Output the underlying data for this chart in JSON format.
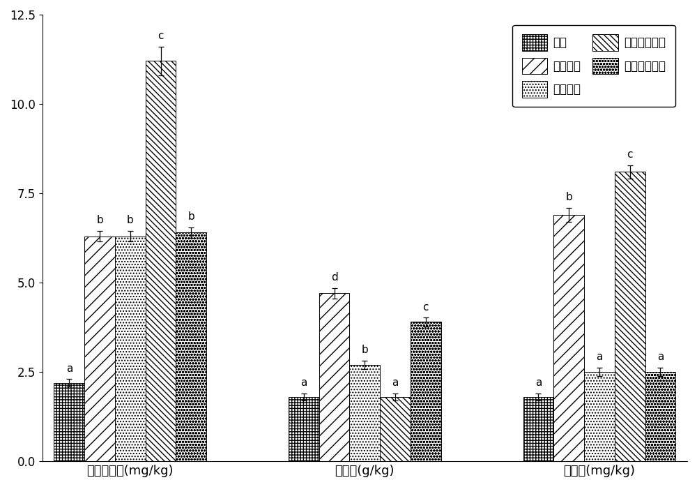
{
  "groups": [
    "微生物量氮(mg/kg)",
    "有机碳(g/kg)",
    "有效磷(mg/kg)"
  ],
  "series_labels": [
    "对照",
    "复合菌剂",
    "固氮菌剂",
    "光合固碳菌剂",
    "解磷解钾菌剂"
  ],
  "values": [
    [
      2.2,
      6.3,
      6.3,
      11.2,
      6.4
    ],
    [
      1.8,
      4.7,
      2.7,
      1.8,
      3.9
    ],
    [
      1.8,
      6.9,
      2.5,
      8.1,
      2.5
    ]
  ],
  "errors": [
    [
      0.1,
      0.15,
      0.15,
      0.4,
      0.15
    ],
    [
      0.1,
      0.15,
      0.12,
      0.1,
      0.12
    ],
    [
      0.1,
      0.2,
      0.12,
      0.18,
      0.12
    ]
  ],
  "sig_labels": [
    [
      "a",
      "b",
      "b",
      "c",
      "b"
    ],
    [
      "a",
      "d",
      "b",
      "a",
      "c"
    ],
    [
      "a",
      "b",
      "a",
      "c",
      "a"
    ]
  ],
  "ylim": [
    0,
    12.5
  ],
  "yticks": [
    0.0,
    2.5,
    5.0,
    7.5,
    10.0,
    12.5
  ],
  "bar_width": 0.13,
  "figsize": [
    10.0,
    6.98
  ],
  "dpi": 100
}
